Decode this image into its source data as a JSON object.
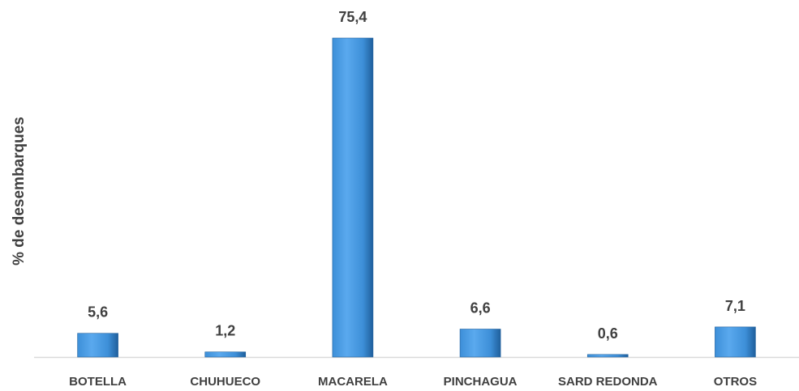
{
  "chart_data": {
    "type": "bar",
    "title": "",
    "xlabel": "",
    "ylabel": "% de desembarques",
    "categories": [
      "BOTELLA",
      "CHUHUECO",
      "MACARELA",
      "PINCHAGUA",
      "SARD REDONDA",
      "OTROS"
    ],
    "values": [
      5.6,
      1.2,
      75.4,
      6.6,
      0.6,
      7.1
    ],
    "value_labels": [
      "5,6",
      "1,2",
      "75,4",
      "6,6",
      "0,6",
      "7,1"
    ],
    "ylim": [
      0,
      80
    ],
    "grid": false,
    "legend": "none",
    "colors": {
      "bar_light": "#5aa9ee",
      "bar_mid": "#3d8fd8",
      "bar_dark": "#1f5f9c",
      "text": "#404040",
      "axis": "#d9d9d9"
    }
  }
}
